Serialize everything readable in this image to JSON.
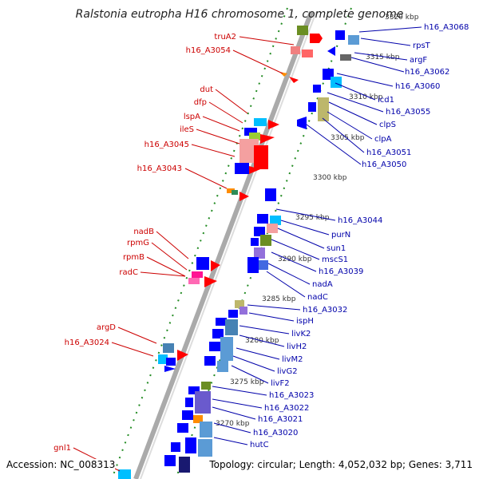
{
  "title": "Ralstonia eutropha H16 chromosome 1, complete genome",
  "accession": "Accession: NC_008313",
  "summary": "Topology: circular; Length: 4,052,032 bp; Genes: 3,711",
  "kbp_labels": [
    "3320 kbp",
    "3315 kbp",
    "3310 kbp",
    "3305 kbp",
    "3300 kbp",
    "3295 kbp",
    "3290 kbp",
    "3285 kbp",
    "3280 kbp",
    "3275 kbp",
    "3270 kbp"
  ],
  "genes_left": [
    "truA2",
    "h16_A3054",
    "dut",
    "dfp",
    "lspA",
    "ileS",
    "h16_A3045",
    "h16_A3043",
    "nadB",
    "rpmG",
    "rpmB",
    "radC",
    "argD",
    "h16_A3024",
    "gnl1"
  ],
  "genes_right": [
    "h16_A3068",
    "rpsT",
    "argF",
    "h16_A3062",
    "h16_A3060",
    "icd1",
    "h16_A3055",
    "clpS",
    "clpA",
    "h16_A3051",
    "h16_A3050",
    "h16_A3044",
    "purN",
    "sun1",
    "mscS1",
    "h16_A3039",
    "nadA",
    "nadC",
    "h16_A3032",
    "ispH",
    "livK2",
    "livH2",
    "livM2",
    "livG2",
    "livF2",
    "h16_A3023",
    "h16_A3022",
    "h16_A3021",
    "h16_A3020",
    "hutC"
  ],
  "colors": {
    "forward": "#ff0000",
    "reverse": "#0000ff",
    "left_label": "#cc0000",
    "right_label": "#0000aa",
    "backbone": "#999999",
    "ticks": "#228b22"
  }
}
